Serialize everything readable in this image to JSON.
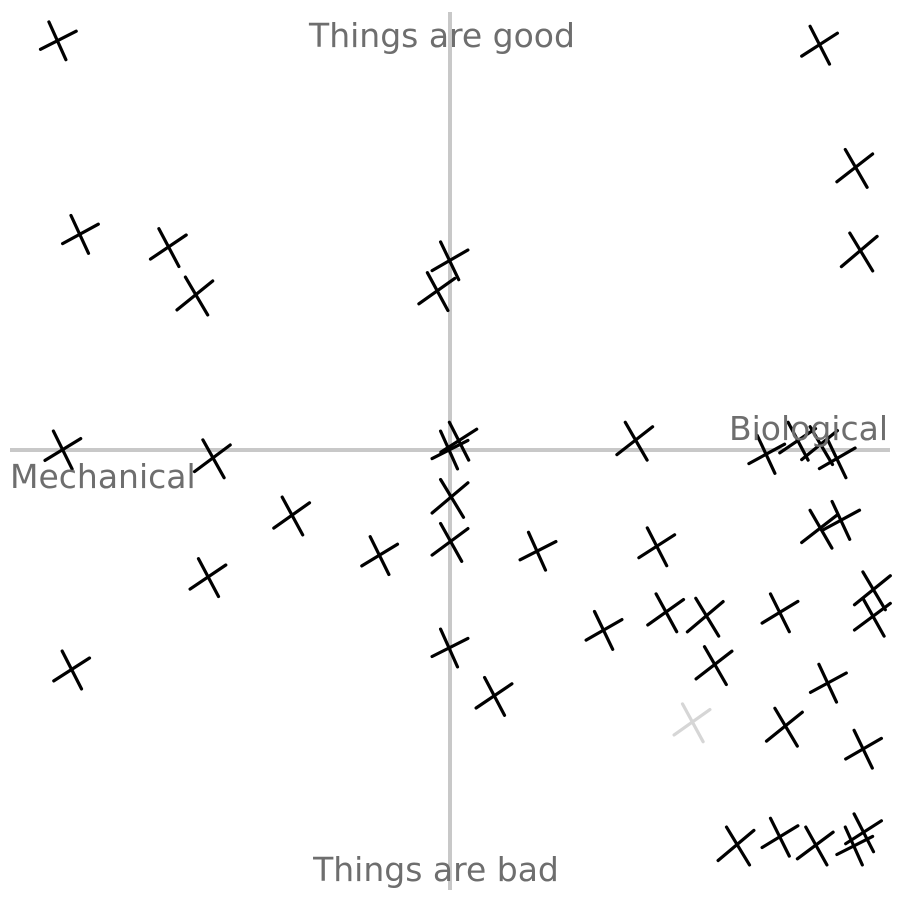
{
  "chart_data": {
    "type": "scatter",
    "marker": "x",
    "xlim": [
      -1,
      1
    ],
    "ylim": [
      -1,
      1
    ],
    "axis_labels": {
      "top": "Things are good",
      "bottom": "Things are bad",
      "left": "Mechanical",
      "right": "Biological"
    },
    "colors": {
      "mark": "#000000",
      "faint_mark": "#d6d6d6",
      "axis": "#c8c8c8",
      "label": "#6e6e6e"
    },
    "points": [
      {
        "x": -0.89,
        "y": 0.93
      },
      {
        "x": 0.84,
        "y": 0.92
      },
      {
        "x": 0.92,
        "y": 0.64
      },
      {
        "x": -0.84,
        "y": 0.49
      },
      {
        "x": -0.64,
        "y": 0.46
      },
      {
        "x": -0.58,
        "y": 0.35
      },
      {
        "x": 0.0,
        "y": 0.43
      },
      {
        "x": -0.03,
        "y": 0.36
      },
      {
        "x": 0.93,
        "y": 0.45
      },
      {
        "x": -0.88,
        "y": 0.0
      },
      {
        "x": -0.54,
        "y": -0.02
      },
      {
        "x": 0.0,
        "y": 0.0
      },
      {
        "x": 0.02,
        "y": 0.02
      },
      {
        "x": 0.42,
        "y": 0.02
      },
      {
        "x": 0.72,
        "y": -0.01
      },
      {
        "x": 0.79,
        "y": 0.02
      },
      {
        "x": 0.84,
        "y": 0.01
      },
      {
        "x": 0.88,
        "y": -0.02
      },
      {
        "x": -0.36,
        "y": -0.15
      },
      {
        "x": 0.0,
        "y": -0.11
      },
      {
        "x": -0.16,
        "y": -0.24
      },
      {
        "x": 0.0,
        "y": -0.21
      },
      {
        "x": 0.2,
        "y": -0.23
      },
      {
        "x": 0.47,
        "y": -0.22
      },
      {
        "x": 0.84,
        "y": -0.18
      },
      {
        "x": 0.89,
        "y": -0.16
      },
      {
        "x": -0.55,
        "y": -0.29
      },
      {
        "x": 0.96,
        "y": -0.32
      },
      {
        "x": 0.35,
        "y": -0.41
      },
      {
        "x": 0.49,
        "y": -0.37
      },
      {
        "x": 0.58,
        "y": -0.38
      },
      {
        "x": 0.75,
        "y": -0.37
      },
      {
        "x": 0.96,
        "y": -0.38
      },
      {
        "x": 0.0,
        "y": -0.45
      },
      {
        "x": -0.86,
        "y": -0.5
      },
      {
        "x": 0.6,
        "y": -0.49
      },
      {
        "x": 0.86,
        "y": -0.53
      },
      {
        "x": 0.1,
        "y": -0.56
      },
      {
        "x": 0.76,
        "y": -0.63
      },
      {
        "x": 0.94,
        "y": -0.68
      },
      {
        "x": 0.55,
        "y": -0.62,
        "faint": true
      },
      {
        "x": 0.65,
        "y": -0.9
      },
      {
        "x": 0.75,
        "y": -0.88
      },
      {
        "x": 0.83,
        "y": -0.9
      },
      {
        "x": 0.92,
        "y": -0.9
      },
      {
        "x": 0.94,
        "y": -0.87
      }
    ]
  }
}
